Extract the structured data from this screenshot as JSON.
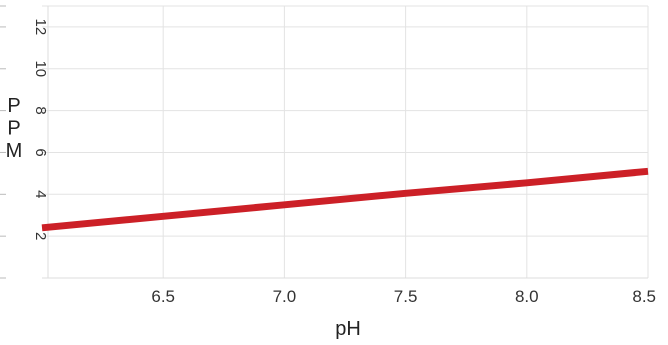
{
  "chart_data": {
    "type": "line",
    "title": "",
    "xlabel": "pH",
    "ylabel": "PPM",
    "xlim": [
      6.0,
      8.5
    ],
    "ylim": [
      0,
      13
    ],
    "x_ticks": [
      6.5,
      7.0,
      7.5,
      8.0,
      8.5
    ],
    "x_tick_labels": [
      "6.5",
      "7.0",
      "7.5",
      "8.0",
      "8.5"
    ],
    "y_ticks": [
      2,
      4,
      6,
      8,
      10,
      12
    ],
    "y_tick_labels": [
      "2",
      "4",
      "6",
      "8",
      "10",
      "12"
    ],
    "grid": true,
    "legend": "none",
    "series": [
      {
        "color": "#cc2027",
        "x": [
          6.0,
          6.5,
          7.0,
          7.5,
          8.0,
          8.5
        ],
        "y": [
          2.4,
          2.95,
          3.5,
          4.05,
          4.55,
          5.1
        ]
      }
    ]
  }
}
